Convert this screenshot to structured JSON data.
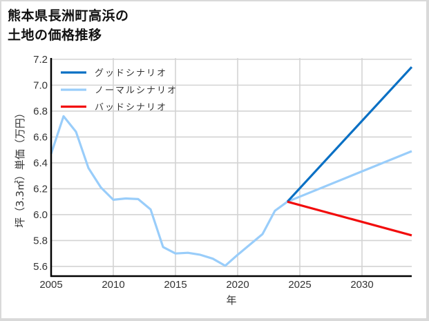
{
  "title": {
    "line1": "熊本県長洲町高浜の",
    "line2": "土地の価格推移"
  },
  "colors": {
    "good": "#0a70c4",
    "normal": "#99cdfa",
    "bad": "#f20c0c",
    "grid": "#d3d3d3",
    "axis": "#000000",
    "frame": "#d9d9d9"
  },
  "chart_data": {
    "type": "line",
    "title": "熊本県長洲町高浜の土地の価格推移",
    "xlabel": "年",
    "ylabel": "坪（3.3㎡）単価（万円）",
    "xlim": [
      2005,
      2034
    ],
    "ylim": [
      5.525,
      7.21
    ],
    "x_ticks": [
      2005,
      2010,
      2015,
      2020,
      2025,
      2030
    ],
    "y_ticks": [
      5.6,
      5.8,
      6.0,
      6.2,
      6.4,
      6.6,
      6.8,
      7.0,
      7.2
    ],
    "y_tick_labels": [
      "5.6",
      "5.8",
      "6.0",
      "6.2",
      "6.4",
      "6.6",
      "6.8",
      "7.0",
      "7.2"
    ],
    "grid": true,
    "legend_position": "upper left",
    "series": [
      {
        "name": "グッドシナリオ",
        "color": "#0a70c4",
        "x": [
          2024,
          2034
        ],
        "values": [
          6.1,
          7.14
        ]
      },
      {
        "name": "ノーマルシナリオ",
        "color": "#99cdfa",
        "x": [
          2005,
          2006,
          2007,
          2008,
          2009,
          2010,
          2011,
          2012,
          2013,
          2014,
          2015,
          2016,
          2017,
          2018,
          2019,
          2020,
          2021,
          2022,
          2023,
          2024,
          2034
        ],
        "values": [
          6.47,
          6.76,
          6.64,
          6.36,
          6.21,
          6.115,
          6.125,
          6.12,
          6.04,
          5.75,
          5.7,
          5.705,
          5.69,
          5.66,
          5.605,
          5.69,
          5.77,
          5.85,
          6.03,
          6.1,
          6.49
        ]
      },
      {
        "name": "バッドシナリオ",
        "color": "#f20c0c",
        "x": [
          2024,
          2034
        ],
        "values": [
          6.1,
          5.84
        ]
      }
    ]
  }
}
